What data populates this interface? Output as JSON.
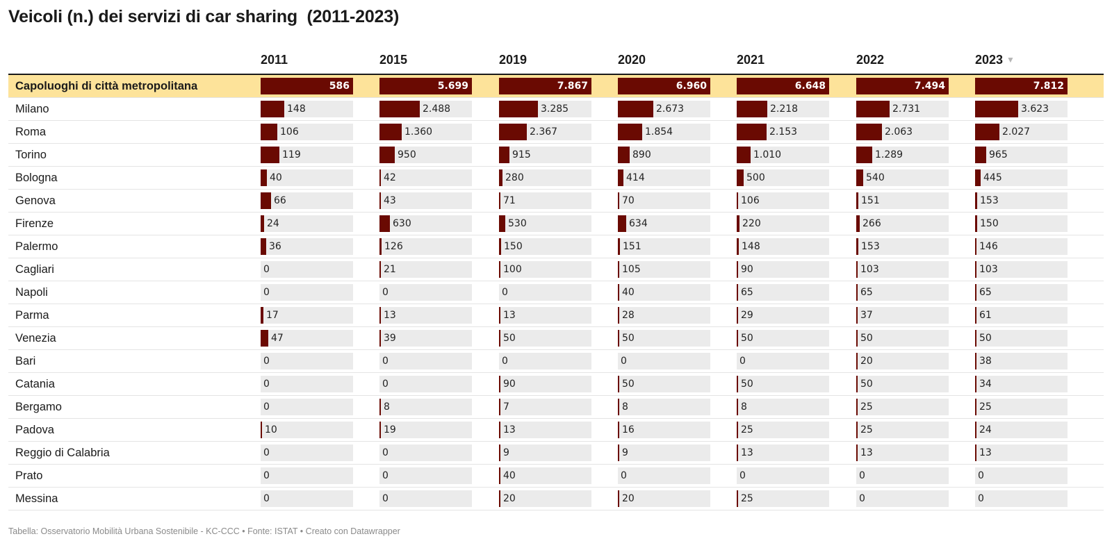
{
  "title": "Veicoli (n.) dei servizi di car sharing  (2011-2023)",
  "colors": {
    "bar": "#6a0a02",
    "track": "#ebebeb",
    "highlight_row": "#fde39a",
    "sort_icon": "#b5b5b5"
  },
  "icons": {
    "sort": "sort-down-triangle"
  },
  "sort_glyph": "▼",
  "chart_data": {
    "type": "table",
    "title": "Veicoli (n.) dei servizi di car sharing  (2011-2023)",
    "columns": [
      "2011",
      "2015",
      "2019",
      "2020",
      "2021",
      "2022",
      "2023"
    ],
    "sorted_column": "2023",
    "sort_order": "descending",
    "rows": [
      {
        "label": "Capoluoghi di città metropolitana",
        "highlight": true,
        "values": [
          586,
          5699,
          7867,
          6960,
          6648,
          7494,
          7812
        ],
        "display": [
          "586",
          "5.699",
          "7.867",
          "6.960",
          "6.648",
          "7.494",
          "7.812"
        ]
      },
      {
        "label": "Milano",
        "values": [
          148,
          2488,
          3285,
          2673,
          2218,
          2731,
          3623
        ],
        "display": [
          "148",
          "2.488",
          "3.285",
          "2.673",
          "2.218",
          "2.731",
          "3.623"
        ]
      },
      {
        "label": "Roma",
        "values": [
          106,
          1360,
          2367,
          1854,
          2153,
          2063,
          2027
        ],
        "display": [
          "106",
          "1.360",
          "2.367",
          "1.854",
          "2.153",
          "2.063",
          "2.027"
        ]
      },
      {
        "label": "Torino",
        "values": [
          119,
          950,
          915,
          890,
          1010,
          1289,
          965
        ],
        "display": [
          "119",
          "950",
          "915",
          "890",
          "1.010",
          "1.289",
          "965"
        ]
      },
      {
        "label": "Bologna",
        "values": [
          40,
          42,
          280,
          414,
          500,
          540,
          445
        ],
        "display": [
          "40",
          "42",
          "280",
          "414",
          "500",
          "540",
          "445"
        ]
      },
      {
        "label": "Genova",
        "values": [
          66,
          43,
          71,
          70,
          106,
          151,
          153
        ],
        "display": [
          "66",
          "43",
          "71",
          "70",
          "106",
          "151",
          "153"
        ]
      },
      {
        "label": "Firenze",
        "values": [
          24,
          630,
          530,
          634,
          220,
          266,
          150
        ],
        "display": [
          "24",
          "630",
          "530",
          "634",
          "220",
          "266",
          "150"
        ]
      },
      {
        "label": "Palermo",
        "values": [
          36,
          126,
          150,
          151,
          148,
          153,
          146
        ],
        "display": [
          "36",
          "126",
          "150",
          "151",
          "148",
          "153",
          "146"
        ]
      },
      {
        "label": "Cagliari",
        "values": [
          0,
          21,
          100,
          105,
          90,
          103,
          103
        ],
        "display": [
          "0",
          "21",
          "100",
          "105",
          "90",
          "103",
          "103"
        ]
      },
      {
        "label": "Napoli",
        "values": [
          0,
          0,
          0,
          40,
          65,
          65,
          65
        ],
        "display": [
          "0",
          "0",
          "0",
          "40",
          "65",
          "65",
          "65"
        ]
      },
      {
        "label": "Parma",
        "values": [
          17,
          13,
          13,
          28,
          29,
          37,
          61
        ],
        "display": [
          "17",
          "13",
          "13",
          "28",
          "29",
          "37",
          "61"
        ]
      },
      {
        "label": "Venezia",
        "values": [
          47,
          39,
          50,
          50,
          50,
          50,
          50
        ],
        "display": [
          "47",
          "39",
          "50",
          "50",
          "50",
          "50",
          "50"
        ]
      },
      {
        "label": "Bari",
        "values": [
          0,
          0,
          0,
          0,
          0,
          20,
          38
        ],
        "display": [
          "0",
          "0",
          "0",
          "0",
          "0",
          "20",
          "38"
        ]
      },
      {
        "label": "Catania",
        "values": [
          0,
          0,
          90,
          50,
          50,
          50,
          34
        ],
        "display": [
          "0",
          "0",
          "90",
          "50",
          "50",
          "50",
          "34"
        ]
      },
      {
        "label": "Bergamo",
        "values": [
          0,
          8,
          7,
          8,
          8,
          25,
          25
        ],
        "display": [
          "0",
          "8",
          "7",
          "8",
          "8",
          "25",
          "25"
        ]
      },
      {
        "label": "Padova",
        "values": [
          10,
          19,
          13,
          16,
          25,
          25,
          24
        ],
        "display": [
          "10",
          "19",
          "13",
          "16",
          "25",
          "25",
          "24"
        ]
      },
      {
        "label": "Reggio di Calabria",
        "values": [
          0,
          0,
          9,
          9,
          13,
          13,
          13
        ],
        "display": [
          "0",
          "0",
          "9",
          "9",
          "13",
          "13",
          "13"
        ]
      },
      {
        "label": "Prato",
        "values": [
          0,
          0,
          40,
          0,
          0,
          0,
          0
        ],
        "display": [
          "0",
          "0",
          "40",
          "0",
          "0",
          "0",
          "0"
        ]
      },
      {
        "label": "Messina",
        "values": [
          0,
          0,
          20,
          20,
          25,
          0,
          0
        ],
        "display": [
          "0",
          "0",
          "20",
          "20",
          "25",
          "0",
          "0"
        ]
      }
    ]
  },
  "footer": "Tabella: Osservatorio Mobilità Urbana Sostenibile - KC-CCC • Fonte: ISTAT • Creato con Datawrapper"
}
